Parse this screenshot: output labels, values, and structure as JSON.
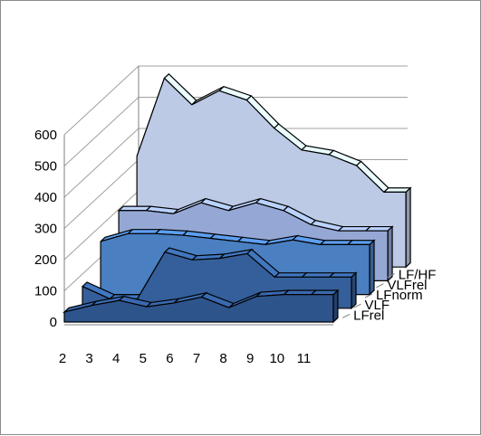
{
  "chart_data": {
    "type": "area",
    "style": "3d",
    "x": [
      "2",
      "3",
      "4",
      "5",
      "6",
      "7",
      "8",
      "9",
      "10",
      "11"
    ],
    "yticks": [
      "0",
      "100",
      "200",
      "300",
      "400",
      "500",
      "600"
    ],
    "ylim": [
      0,
      600
    ],
    "grid": true,
    "legend": "depth-axis",
    "series": [
      {
        "name": "LFrel",
        "color": "#2e548c",
        "values": [
          32,
          53,
          69,
          49,
          61,
          80,
          46,
          82,
          88,
          88
        ]
      },
      {
        "name": "VLF",
        "color": "#345f9a",
        "values": [
          70,
          30,
          30,
          180,
          155,
          160,
          175,
          100,
          100,
          100
        ]
      },
      {
        "name": "LFnorm",
        "color": "#4a7fc1",
        "values": [
          170,
          195,
          195,
          190,
          180,
          170,
          160,
          175,
          160,
          160
        ]
      },
      {
        "name": "VLFrel",
        "color": "#95a8d5",
        "values": [
          225,
          225,
          215,
          250,
          225,
          250,
          225,
          180,
          160,
          160
        ]
      },
      {
        "name": "LF/HF",
        "color": "#bccae6",
        "values": [
          355,
          605,
          520,
          565,
          535,
          445,
          375,
          360,
          325,
          240
        ]
      }
    ]
  }
}
